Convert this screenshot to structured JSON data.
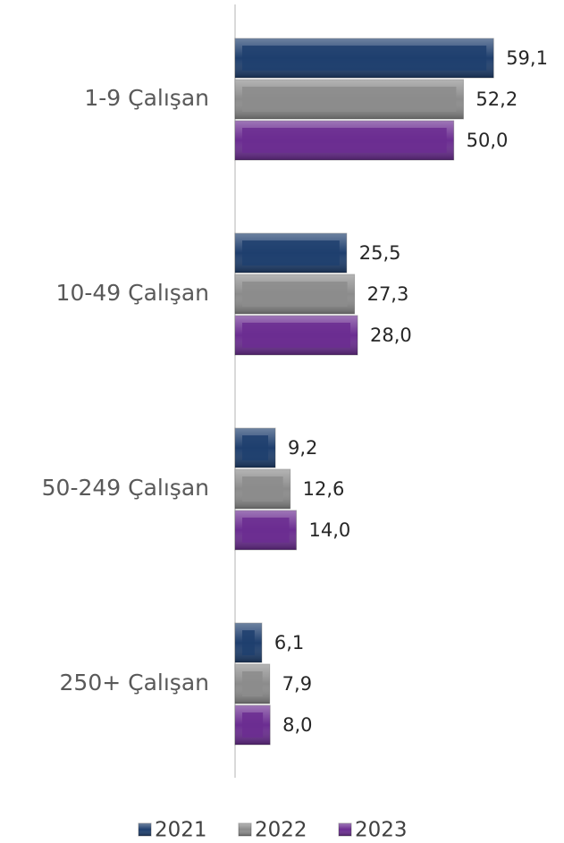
{
  "chart_data": {
    "type": "bar",
    "orientation": "horizontal",
    "categories": [
      "1-9 Çalışan",
      "10-49 Çalışan",
      "50-249 Çalışan",
      "250+ Çalışan"
    ],
    "series": [
      {
        "name": "2021",
        "color": "#1f3f6e",
        "values": [
          59.1,
          25.5,
          9.2,
          6.1
        ],
        "value_labels": [
          "59,1",
          "25,5",
          "9,2",
          "6,1"
        ]
      },
      {
        "name": "2022",
        "color": "#8c8c8c",
        "values": [
          52.2,
          27.3,
          12.6,
          7.9
        ],
        "value_labels": [
          "52,2",
          "27,3",
          "12,6",
          "7,9"
        ]
      },
      {
        "name": "2023",
        "color": "#6b2d91",
        "values": [
          50.0,
          28.0,
          14.0,
          8.0
        ],
        "value_labels": [
          "50,0",
          "28,0",
          "14,0",
          "8,0"
        ]
      }
    ],
    "xlim": [
      0,
      75
    ],
    "legend": "bottom"
  }
}
